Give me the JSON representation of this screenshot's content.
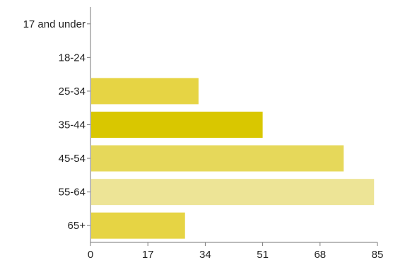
{
  "chart_data": {
    "type": "bar",
    "orientation": "horizontal",
    "title": "",
    "xlabel": "",
    "ylabel": "",
    "categories": [
      "17 and under",
      "18-24",
      "25-34",
      "35-44",
      "45-54",
      "55-64",
      "65+"
    ],
    "values": [
      0,
      0,
      32,
      51,
      75,
      84,
      28
    ],
    "colors": [
      "#e6d444",
      "#e6d444",
      "#e6d444",
      "#d9c700",
      "#e6d85a",
      "#ede496",
      "#e6d444"
    ],
    "xlim": [
      0,
      85
    ],
    "xticks": [
      "0",
      "17",
      "34",
      "51",
      "68",
      "85"
    ],
    "grid": false,
    "legend": "none"
  }
}
